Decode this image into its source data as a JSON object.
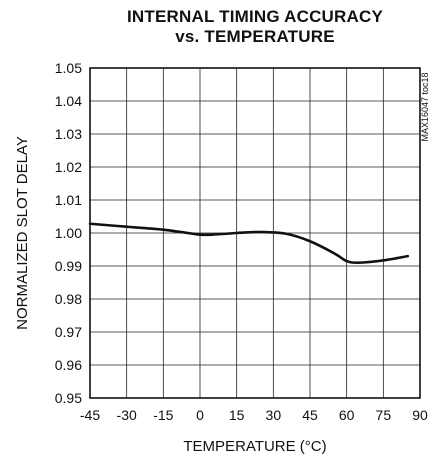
{
  "chart_data": {
    "type": "line",
    "title": [
      "INTERNAL TIMING ACCURACY",
      "vs. TEMPERATURE"
    ],
    "xlabel": "TEMPERATURE (°C)",
    "ylabel": "NORMALIZED SLOT DELAY",
    "watermark": "MAX16047 toc18",
    "xlim": [
      -45,
      90
    ],
    "ylim": [
      0.95,
      1.05
    ],
    "x_ticks": [
      -45,
      -30,
      -15,
      0,
      15,
      30,
      45,
      60,
      75,
      90
    ],
    "x_tick_labels": [
      "-45",
      "-30",
      "-15",
      "0",
      "15",
      "30",
      "45",
      "60",
      "75",
      "90"
    ],
    "y_ticks": [
      0.95,
      0.96,
      0.97,
      0.98,
      0.99,
      1.0,
      1.01,
      1.02,
      1.03,
      1.04,
      1.05
    ],
    "y_tick_labels": [
      "0.95",
      "0.96",
      "0.97",
      "0.98",
      "0.99",
      "1.00",
      "1.01",
      "1.02",
      "1.03",
      "1.04",
      "1.05"
    ],
    "grid": true,
    "series": [
      {
        "x": [
          -45,
          -35,
          -25,
          -15,
          -5,
          0,
          5,
          15,
          25,
          35,
          45,
          55,
          60,
          65,
          75,
          85
        ],
        "y": [
          1.0028,
          1.0022,
          1.0016,
          1.001,
          1.0,
          0.9995,
          0.9995,
          1.0,
          1.0003,
          0.9998,
          0.9975,
          0.9938,
          0.9915,
          0.991,
          0.9917,
          0.993
        ]
      }
    ]
  }
}
